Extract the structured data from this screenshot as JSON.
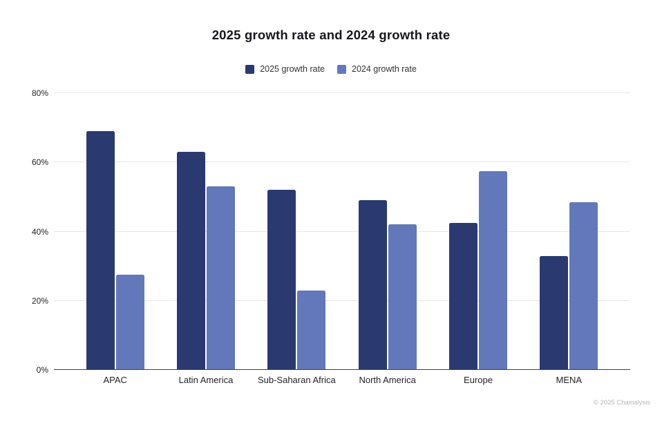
{
  "title": "2025 growth rate and 2024 growth rate",
  "footer": "© 2025 Chainalysis",
  "colors": {
    "series_2025": "#2a3a70",
    "series_2024": "#6278ba",
    "gridline": "#e7e7ea",
    "baseline": "#424247",
    "title_text": "#16161f",
    "axis_text": "#222226",
    "footer_text": "#b6b6bc",
    "background": "#ffffff"
  },
  "chart_data": {
    "type": "bar",
    "title": "2025 growth rate and 2024 growth rate",
    "categories": [
      "APAC",
      "Latin America",
      "Sub-Saharan Africa",
      "North America",
      "Europe",
      "MENA"
    ],
    "series": [
      {
        "name": "2025 growth rate",
        "color": "#2a3a70",
        "values": [
          69,
          63,
          52,
          49,
          42.5,
          33
        ]
      },
      {
        "name": "2024 growth rate",
        "color": "#6278ba",
        "values": [
          27.5,
          53,
          23,
          42,
          57.5,
          48.5
        ]
      }
    ],
    "xlabel": "",
    "ylabel": "",
    "ylim": [
      0,
      80
    ],
    "yticks": [
      {
        "value": 0,
        "label": "0%"
      },
      {
        "value": 20,
        "label": "20%"
      },
      {
        "value": 40,
        "label": "40%"
      },
      {
        "value": 60,
        "label": "60%"
      },
      {
        "value": 80,
        "label": "80%"
      }
    ],
    "grid": true,
    "legend_position": "top-center"
  }
}
